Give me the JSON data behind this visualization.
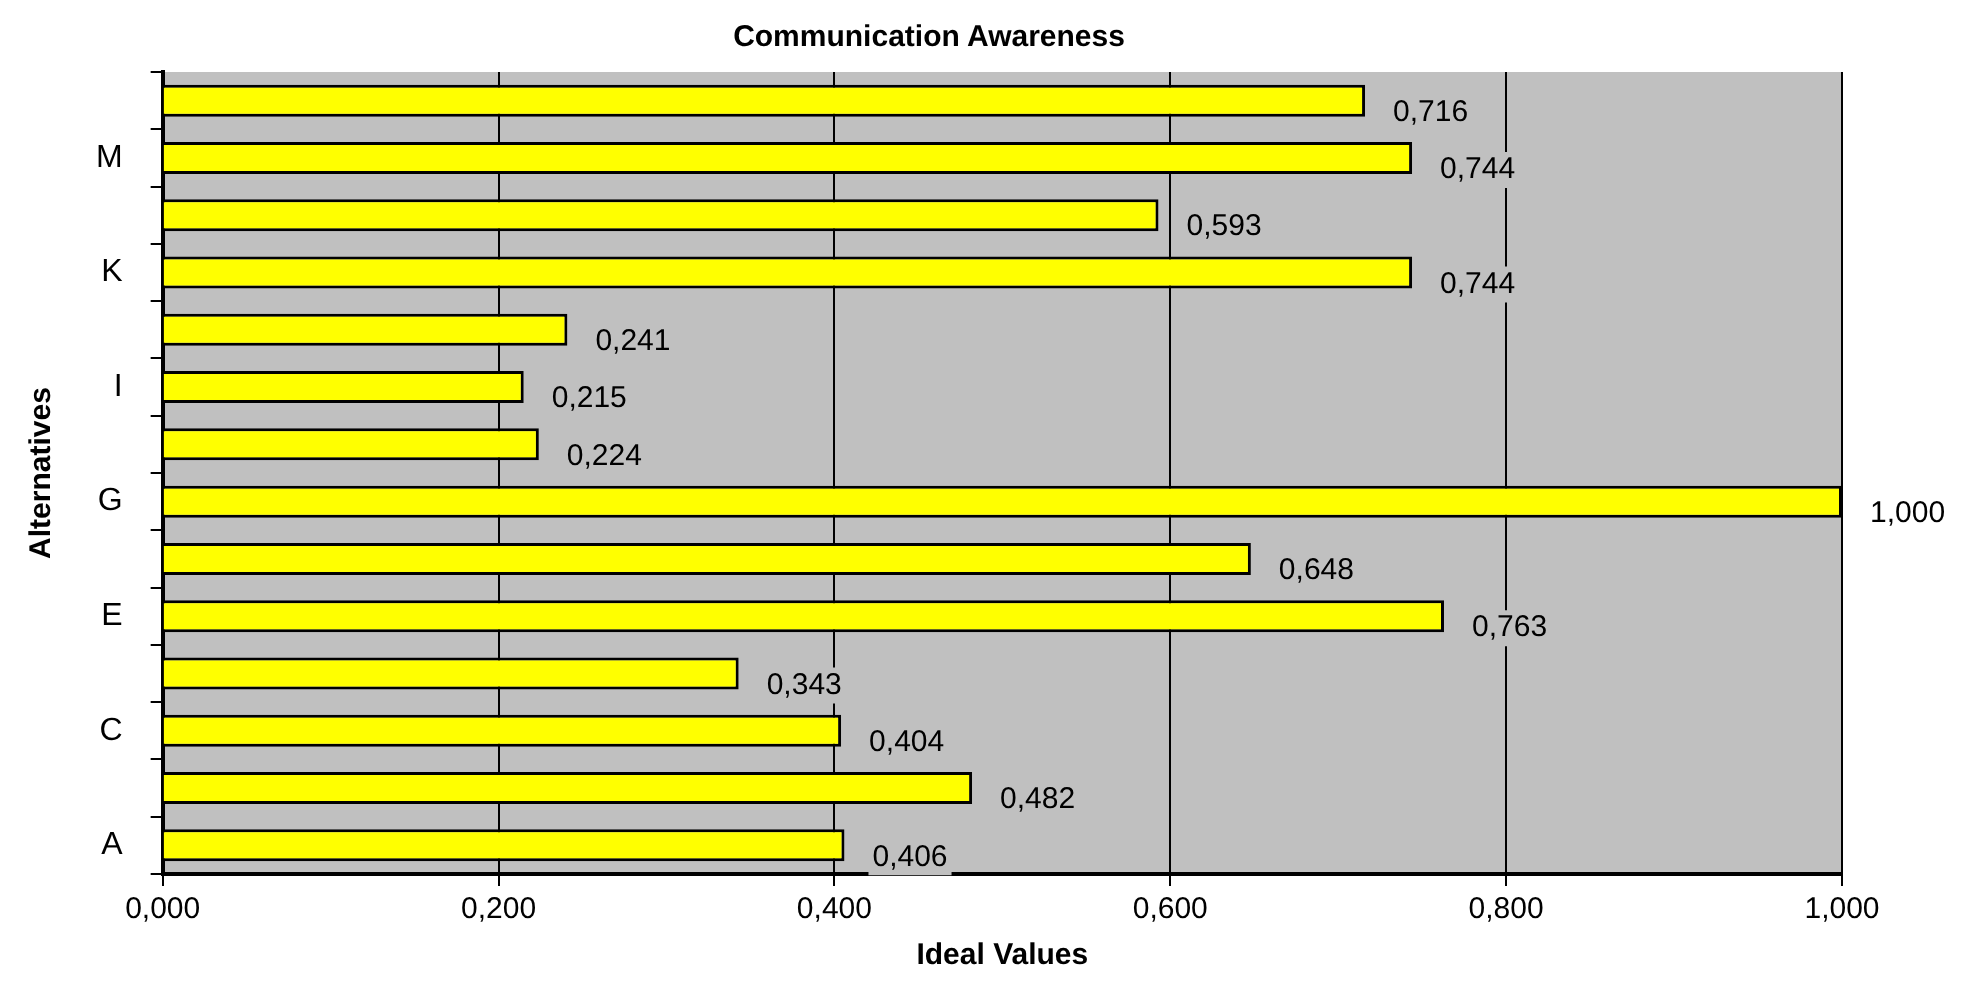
{
  "chart_data": {
    "type": "bar",
    "orientation": "horizontal",
    "title": "Communication Awareness",
    "xlabel": "Ideal Values",
    "ylabel": "Alternatives",
    "categories": [
      null,
      "M",
      null,
      "K",
      null,
      "I",
      null,
      "G",
      null,
      "E",
      null,
      "C",
      null,
      "A"
    ],
    "values": [
      0.716,
      0.744,
      0.593,
      0.744,
      0.241,
      0.215,
      0.224,
      1.0,
      0.648,
      0.763,
      0.343,
      0.404,
      0.482,
      0.406
    ],
    "value_labels": [
      "0,716",
      "0,744",
      "0,593",
      "0,744",
      "0,241",
      "0,215",
      "0,224",
      "1,000",
      "0,648",
      "0,763",
      "0,343",
      "0,404",
      "0,482",
      "0,406"
    ],
    "color": "#ffff00",
    "xlim": [
      0,
      1
    ],
    "xticks": [
      {
        "value": 0,
        "label": "0,000"
      },
      {
        "value": 0.2,
        "label": "0,200"
      },
      {
        "value": 0.4,
        "label": "0,400"
      },
      {
        "value": 0.6,
        "label": "0,600"
      },
      {
        "value": 0.8,
        "label": "0,800"
      },
      {
        "value": 1,
        "label": "1,000"
      }
    ],
    "grid": "x",
    "legend": false
  }
}
